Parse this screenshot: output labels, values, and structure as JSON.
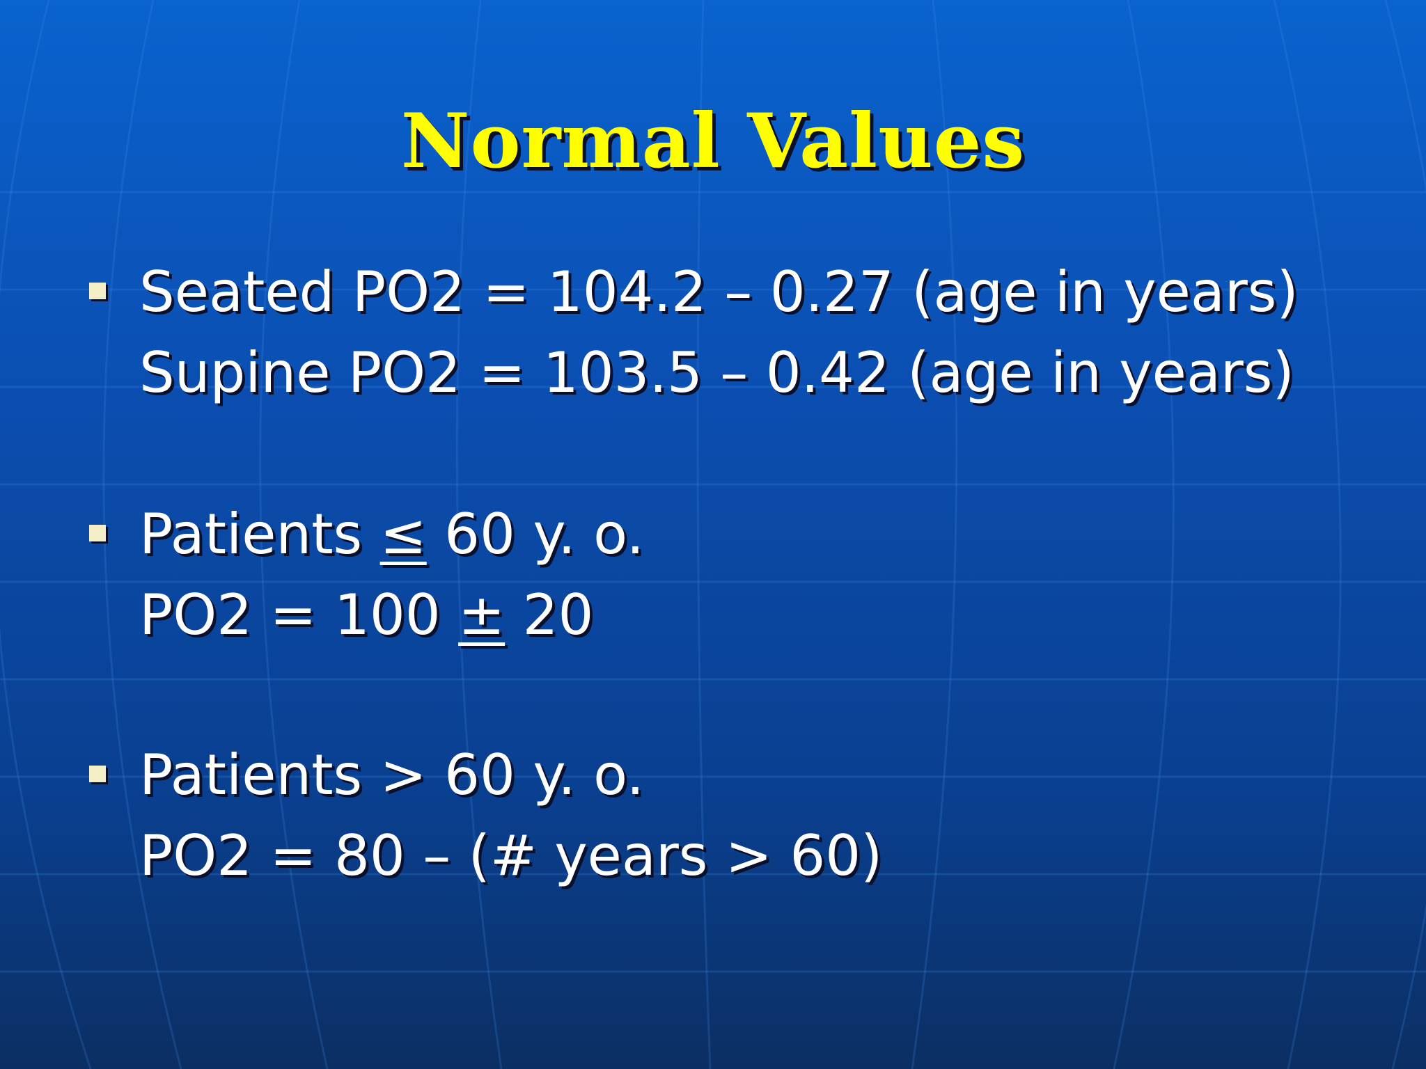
{
  "slide": {
    "title": "Normal Values",
    "bullets": [
      {
        "line1": "Seated PO2 = 104.2 – 0.27 (age in years)",
        "line2": "Supine PO2 = 103.5 – 0.42 (age in years)"
      },
      {
        "line1_prefix": "Patients ",
        "line1_symbol": "≤",
        "line1_suffix": " 60 y. o.",
        "line2_prefix": "PO2 = 100 ",
        "line2_symbol": "±",
        "line2_suffix": " 20"
      },
      {
        "line1": "Patients > 60 y. o.",
        "line2": "PO2 = 80 – (# years > 60)"
      }
    ]
  },
  "colors": {
    "title": "#ffff00",
    "text": "#ffffff",
    "bullet": "#f3f0c8",
    "background_top": "#0a63cf",
    "background_bottom": "#0b2f63"
  }
}
